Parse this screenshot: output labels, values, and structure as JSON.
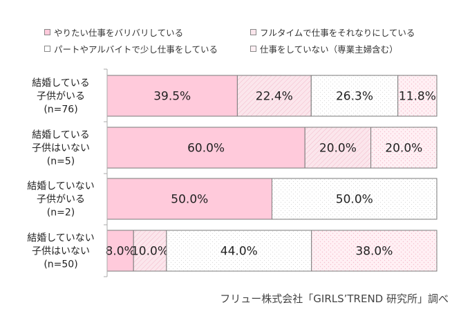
{
  "colors": {
    "work_full": "#ffcadb",
    "work_moderate": "#fbe6ec",
    "work_light": "#ffffff",
    "not_working": "#fff0f4",
    "border": "#7a7a7a",
    "text": "#222222"
  },
  "legend": [
    {
      "key": "work_full",
      "label": "やりたい仕事をバリバリしている"
    },
    {
      "key": "work_moderate",
      "label": "フルタイムで仕事をそれなりにしている"
    },
    {
      "key": "work_light",
      "label": "パートやアルバイトで少し仕事をしている"
    },
    {
      "key": "not_working",
      "label": "仕事をしていない（専業主婦含む）"
    }
  ],
  "source": "フリュー株式会社「GIRLS’TREND 研究所」調べ",
  "chart_data": {
    "type": "bar",
    "orientation": "horizontal",
    "stacked": true,
    "unit": "%",
    "categories": [
      {
        "lines": [
          "結婚している",
          "子供がいる",
          "(n=76)"
        ]
      },
      {
        "lines": [
          "結婚している",
          "子供はいない",
          "(n=5)"
        ]
      },
      {
        "lines": [
          "結婚していない",
          "子供がいる",
          "(n=2)"
        ]
      },
      {
        "lines": [
          "結婚していない",
          "子供はいない",
          "(n=50)"
        ]
      }
    ],
    "series": [
      {
        "key": "work_full",
        "name": "やりたい仕事をバリバリしている",
        "values": [
          39.5,
          60.0,
          50.0,
          8.0
        ],
        "labels": [
          "39.5%",
          "60.0%",
          "50.0%",
          "8.0%"
        ]
      },
      {
        "key": "work_moderate",
        "name": "フルタイムで仕事をそれなりにしている",
        "values": [
          22.4,
          20.0,
          0,
          10.0
        ],
        "labels": [
          "22.4%",
          "20.0%",
          "",
          "10.0%"
        ]
      },
      {
        "key": "work_light",
        "name": "パートやアルバイトで少し仕事をしている",
        "values": [
          26.3,
          0,
          50.0,
          44.0
        ],
        "labels": [
          "26.3%",
          "",
          "50.0%",
          "44.0%"
        ]
      },
      {
        "key": "not_working",
        "name": "仕事をしていない（専業主婦含む）",
        "values": [
          11.8,
          20.0,
          0,
          38.0
        ],
        "labels": [
          "11.8%",
          "20.0%",
          "",
          "38.0%"
        ]
      }
    ],
    "xlim": [
      0,
      100
    ],
    "grid": false,
    "legend_position": "top"
  }
}
